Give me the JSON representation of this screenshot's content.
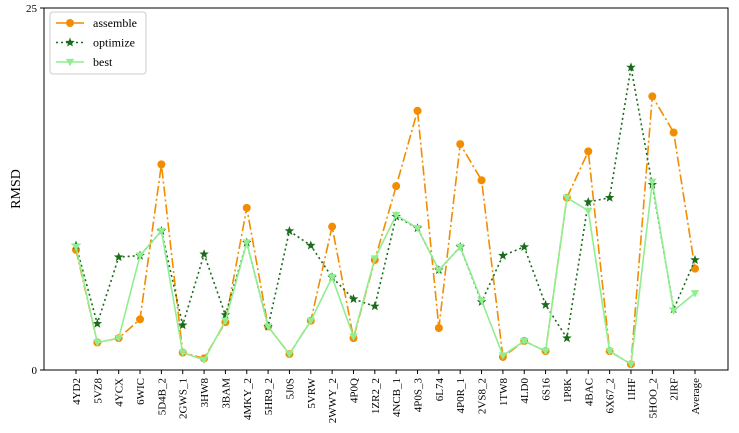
{
  "chart_data": {
    "type": "line",
    "title": "",
    "xlabel": "",
    "ylabel": "RMSD",
    "ylim": [
      0,
      25
    ],
    "yticks": [
      0,
      25
    ],
    "grid": false,
    "legend_position": "top-left",
    "categories": [
      "4YD2",
      "5VZ8",
      "4YCX",
      "6WIC",
      "5D4B_2",
      "2GWS_1",
      "3HW8",
      "3BAM",
      "4MKY_2",
      "5HR9_2",
      "5J0S",
      "5VRW",
      "2WWY_2",
      "4P0Q",
      "1ZR2_2",
      "4NCB_1",
      "4P0S_3",
      "6L74",
      "4P0R_1",
      "2VS8_2",
      "1TW8",
      "4LD0",
      "6S16",
      "1P8K",
      "4BAC",
      "6X67_2",
      "1IHF",
      "5HOO_2",
      "2IRF",
      "Average"
    ],
    "series": [
      {
        "name": "assemble",
        "color": "#f28c00",
        "values": [
          8.3,
          1.9,
          2.2,
          3.5,
          14.2,
          1.2,
          0.8,
          3.3,
          11.2,
          3.0,
          1.1,
          3.4,
          9.9,
          2.2,
          7.6,
          12.7,
          17.9,
          2.9,
          15.6,
          13.1,
          0.9,
          2.0,
          1.3,
          11.9,
          15.1,
          1.3,
          0.4,
          18.9,
          16.4,
          7.0
        ]
      },
      {
        "name": "optimize",
        "color": "#1a6b1a",
        "values": [
          8.6,
          3.2,
          7.8,
          7.9,
          9.6,
          3.1,
          8.0,
          3.8,
          8.8,
          3.0,
          9.6,
          8.6,
          6.4,
          4.9,
          4.4,
          10.6,
          9.8,
          6.9,
          8.5,
          4.7,
          7.9,
          8.5,
          4.5,
          2.2,
          11.6,
          11.9,
          20.9,
          12.8,
          4.2,
          7.6
        ]
      },
      {
        "name": "best",
        "color": "#90ee90",
        "values": [
          8.5,
          1.9,
          2.2,
          7.9,
          9.6,
          1.2,
          0.7,
          3.4,
          8.8,
          3.0,
          1.1,
          3.4,
          6.4,
          2.3,
          7.7,
          10.7,
          9.8,
          6.9,
          8.5,
          4.8,
          1.0,
          2.0,
          1.3,
          11.9,
          11.0,
          1.3,
          0.4,
          13.0,
          4.1,
          5.3
        ]
      }
    ]
  }
}
